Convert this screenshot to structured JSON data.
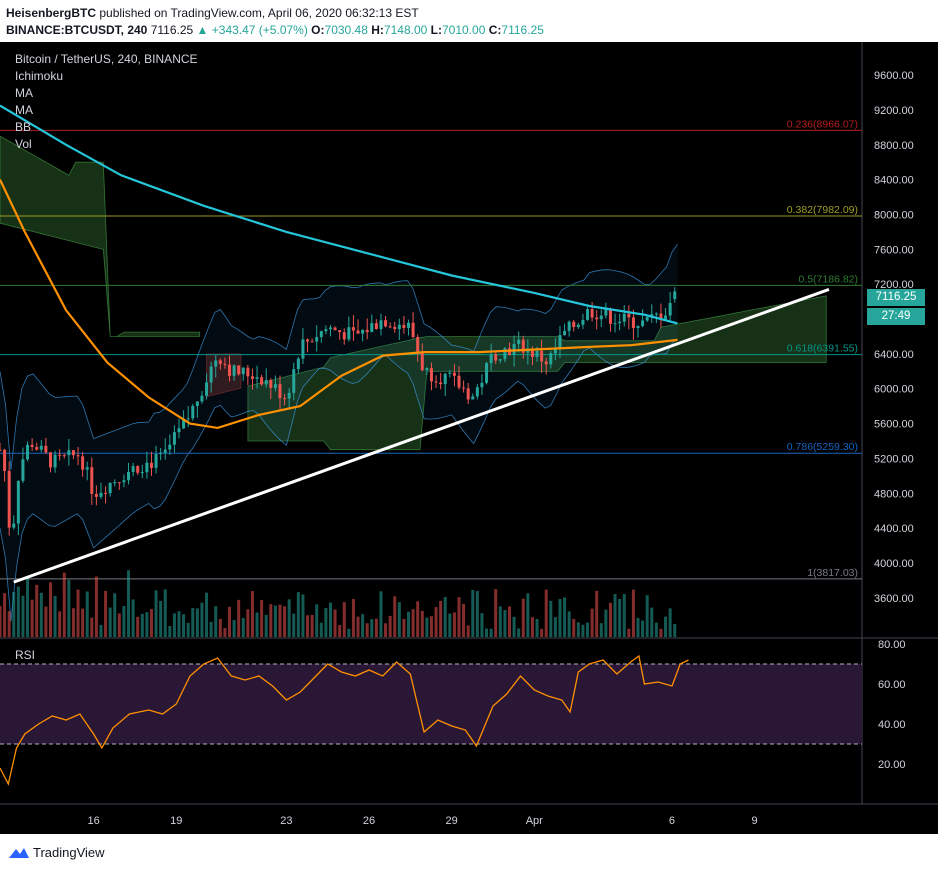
{
  "header": {
    "publisher": "HeisenbergBTC",
    "published_text": "published on TradingView.com, April 06, 2020 06:32:13 EST",
    "symbol": "BINANCE:BTCUSDT, 240",
    "last": "7116.25",
    "change": "▲ +343.47 (+5.07%)",
    "o_label": "O:",
    "o": "7030.48",
    "h_label": "H:",
    "h": "7148.00",
    "l_label": "L:",
    "l": "7010.00",
    "c_label": "C:",
    "c": "7116.25"
  },
  "legend": {
    "title": "Bitcoin / TetherUS, 240, BINANCE",
    "indicators": [
      "Ichimoku",
      "MA",
      "MA",
      "BB",
      "Vol"
    ]
  },
  "rsi_label": "RSI",
  "price_tags": {
    "last": "7116.25",
    "countdown": "27:49"
  },
  "footer": {
    "brand": "TradingView"
  },
  "colors": {
    "up": "#26a69a",
    "down": "#ef5350",
    "ma_cyan": "#26c6da",
    "ma_orange": "#ff9100",
    "trendline": "#ffffff",
    "rsi_line": "#ff9100",
    "rsi_band": "#2a1635",
    "label_teal": "#26a69a"
  },
  "chart_data": [
    {
      "type": "candlestick",
      "title": "Bitcoin / TetherUS, 240, BINANCE",
      "ylim": [
        3150,
        9980
      ],
      "y_ticks": [
        "9600.00",
        "9200.00",
        "8800.00",
        "8400.00",
        "8000.00",
        "7600.00",
        "7200.00",
        "6800.00",
        "6400.00",
        "6000.00",
        "5600.00",
        "5200.00",
        "4800.00",
        "4400.00",
        "4000.00",
        "3600.00"
      ],
      "y_tick_values": [
        9600,
        9200,
        8800,
        8400,
        8000,
        7600,
        7200,
        6800,
        6400,
        6000,
        5600,
        5200,
        4800,
        4400,
        4000,
        3600
      ],
      "x_ticks": [
        "16",
        "19",
        "23",
        "26",
        "29",
        "Apr",
        "6",
        "9"
      ],
      "x_tick_days": [
        16,
        19,
        23,
        26,
        29,
        32,
        37,
        40
      ],
      "x_range_days": [
        12.6,
        43.9
      ],
      "fib_levels": [
        {
          "label": "0.236(8966.07)",
          "value": 8966.07,
          "color": "#b71c1c"
        },
        {
          "label": "0.382(7982.09)",
          "value": 7982.09,
          "color": "#9e9d24"
        },
        {
          "label": "0.5(7186.82)",
          "value": 7186.82,
          "color": "#2e7d32"
        },
        {
          "label": "0.618(6391.55)",
          "value": 6391.55,
          "color": "#009688"
        },
        {
          "label": "0.786(5259.30)",
          "value": 5259.3,
          "color": "#1565c0"
        },
        {
          "label": "1(3817.03)",
          "value": 3817.03,
          "color": "#787b86"
        }
      ],
      "trendline": {
        "from": {
          "day": 13.1,
          "price": 3780
        },
        "to": {
          "day": 42.7,
          "price": 7140
        }
      },
      "close_anchors": [
        [
          12.7,
          5300
        ],
        [
          13.0,
          4200
        ],
        [
          13.3,
          5100
        ],
        [
          13.7,
          5400
        ],
        [
          14.5,
          5150
        ],
        [
          15.5,
          5250
        ],
        [
          16.0,
          4800
        ],
        [
          16.5,
          4900
        ],
        [
          17.5,
          5100
        ],
        [
          18.5,
          5200
        ],
        [
          19.5,
          5700
        ],
        [
          20.5,
          6400
        ],
        [
          21.0,
          6200
        ],
        [
          22.0,
          6150
        ],
        [
          23.0,
          5900
        ],
        [
          23.5,
          6500
        ],
        [
          24.5,
          6700
        ],
        [
          25.5,
          6600
        ],
        [
          26.5,
          6800
        ],
        [
          27.5,
          6700
        ],
        [
          28.0,
          6200
        ],
        [
          29.0,
          6100
        ],
        [
          29.8,
          5900
        ],
        [
          30.5,
          6400
        ],
        [
          31.5,
          6500
        ],
        [
          32.5,
          6300
        ],
        [
          33.0,
          6600
        ],
        [
          34.0,
          6900
        ],
        [
          35.0,
          6800
        ],
        [
          36.0,
          6750
        ],
        [
          36.8,
          6900
        ],
        [
          37.1,
          7116
        ]
      ],
      "ma_cyan": [
        [
          12.6,
          9250
        ],
        [
          15.0,
          8800
        ],
        [
          17.0,
          8450
        ],
        [
          20.0,
          8100
        ],
        [
          23.0,
          7800
        ],
        [
          26.0,
          7550
        ],
        [
          29.0,
          7300
        ],
        [
          32.0,
          7100
        ],
        [
          34.0,
          6950
        ],
        [
          36.0,
          6850
        ],
        [
          37.2,
          6750
        ]
      ],
      "ma_orange": [
        [
          12.6,
          8400
        ],
        [
          13.5,
          7800
        ],
        [
          15.0,
          6900
        ],
        [
          16.5,
          6300
        ],
        [
          18.0,
          5900
        ],
        [
          19.5,
          5600
        ],
        [
          20.5,
          5550
        ],
        [
          22.0,
          5700
        ],
        [
          23.5,
          5800
        ],
        [
          25.0,
          6150
        ],
        [
          26.5,
          6380
        ],
        [
          28.0,
          6420
        ],
        [
          30.0,
          6420
        ],
        [
          32.0,
          6450
        ],
        [
          34.0,
          6480
        ],
        [
          35.5,
          6500
        ],
        [
          37.2,
          6560
        ]
      ],
      "volume_note": "volume bars in lower pane, green/red by candle direction"
    },
    {
      "type": "line",
      "title": "RSI",
      "ylim": [
        0,
        83
      ],
      "y_ticks": [
        "80.00",
        "60.00",
        "40.00",
        "20.00"
      ],
      "y_tick_values": [
        80,
        60,
        40,
        20
      ],
      "bands": [
        30,
        70
      ],
      "x_range_days": [
        12.6,
        43.9
      ],
      "series": [
        {
          "name": "RSI",
          "points": [
            [
              12.6,
              18
            ],
            [
              12.9,
              10
            ],
            [
              13.2,
              28
            ],
            [
              13.5,
              35
            ],
            [
              14.0,
              40
            ],
            [
              14.5,
              44
            ],
            [
              15.0,
              42
            ],
            [
              15.5,
              45
            ],
            [
              16.0,
              35
            ],
            [
              16.3,
              28
            ],
            [
              16.7,
              38
            ],
            [
              17.3,
              45
            ],
            [
              18.0,
              47
            ],
            [
              18.5,
              45
            ],
            [
              19.0,
              50
            ],
            [
              19.5,
              64
            ],
            [
              20.0,
              70
            ],
            [
              20.5,
              73
            ],
            [
              21.0,
              64
            ],
            [
              21.5,
              62
            ],
            [
              22.0,
              64
            ],
            [
              22.5,
              59
            ],
            [
              23.0,
              52
            ],
            [
              23.5,
              56
            ],
            [
              24.0,
              63
            ],
            [
              24.5,
              70
            ],
            [
              25.0,
              66
            ],
            [
              25.5,
              64
            ],
            [
              26.0,
              67
            ],
            [
              26.5,
              64
            ],
            [
              27.0,
              71
            ],
            [
              27.5,
              65
            ],
            [
              28.0,
              36
            ],
            [
              28.5,
              42
            ],
            [
              29.0,
              39
            ],
            [
              29.5,
              37
            ],
            [
              29.9,
              29
            ],
            [
              30.5,
              49
            ],
            [
              31.0,
              55
            ],
            [
              31.5,
              64
            ],
            [
              32.0,
              57
            ],
            [
              32.5,
              54
            ],
            [
              33.0,
              52
            ],
            [
              33.3,
              46
            ],
            [
              33.6,
              66
            ],
            [
              34.0,
              70
            ],
            [
              34.5,
              72
            ],
            [
              35.0,
              65
            ],
            [
              35.5,
              71
            ],
            [
              35.8,
              74
            ],
            [
              36.0,
              60
            ],
            [
              36.5,
              61
            ],
            [
              37.0,
              59
            ],
            [
              37.3,
              70
            ],
            [
              37.6,
              72
            ]
          ]
        }
      ]
    }
  ]
}
